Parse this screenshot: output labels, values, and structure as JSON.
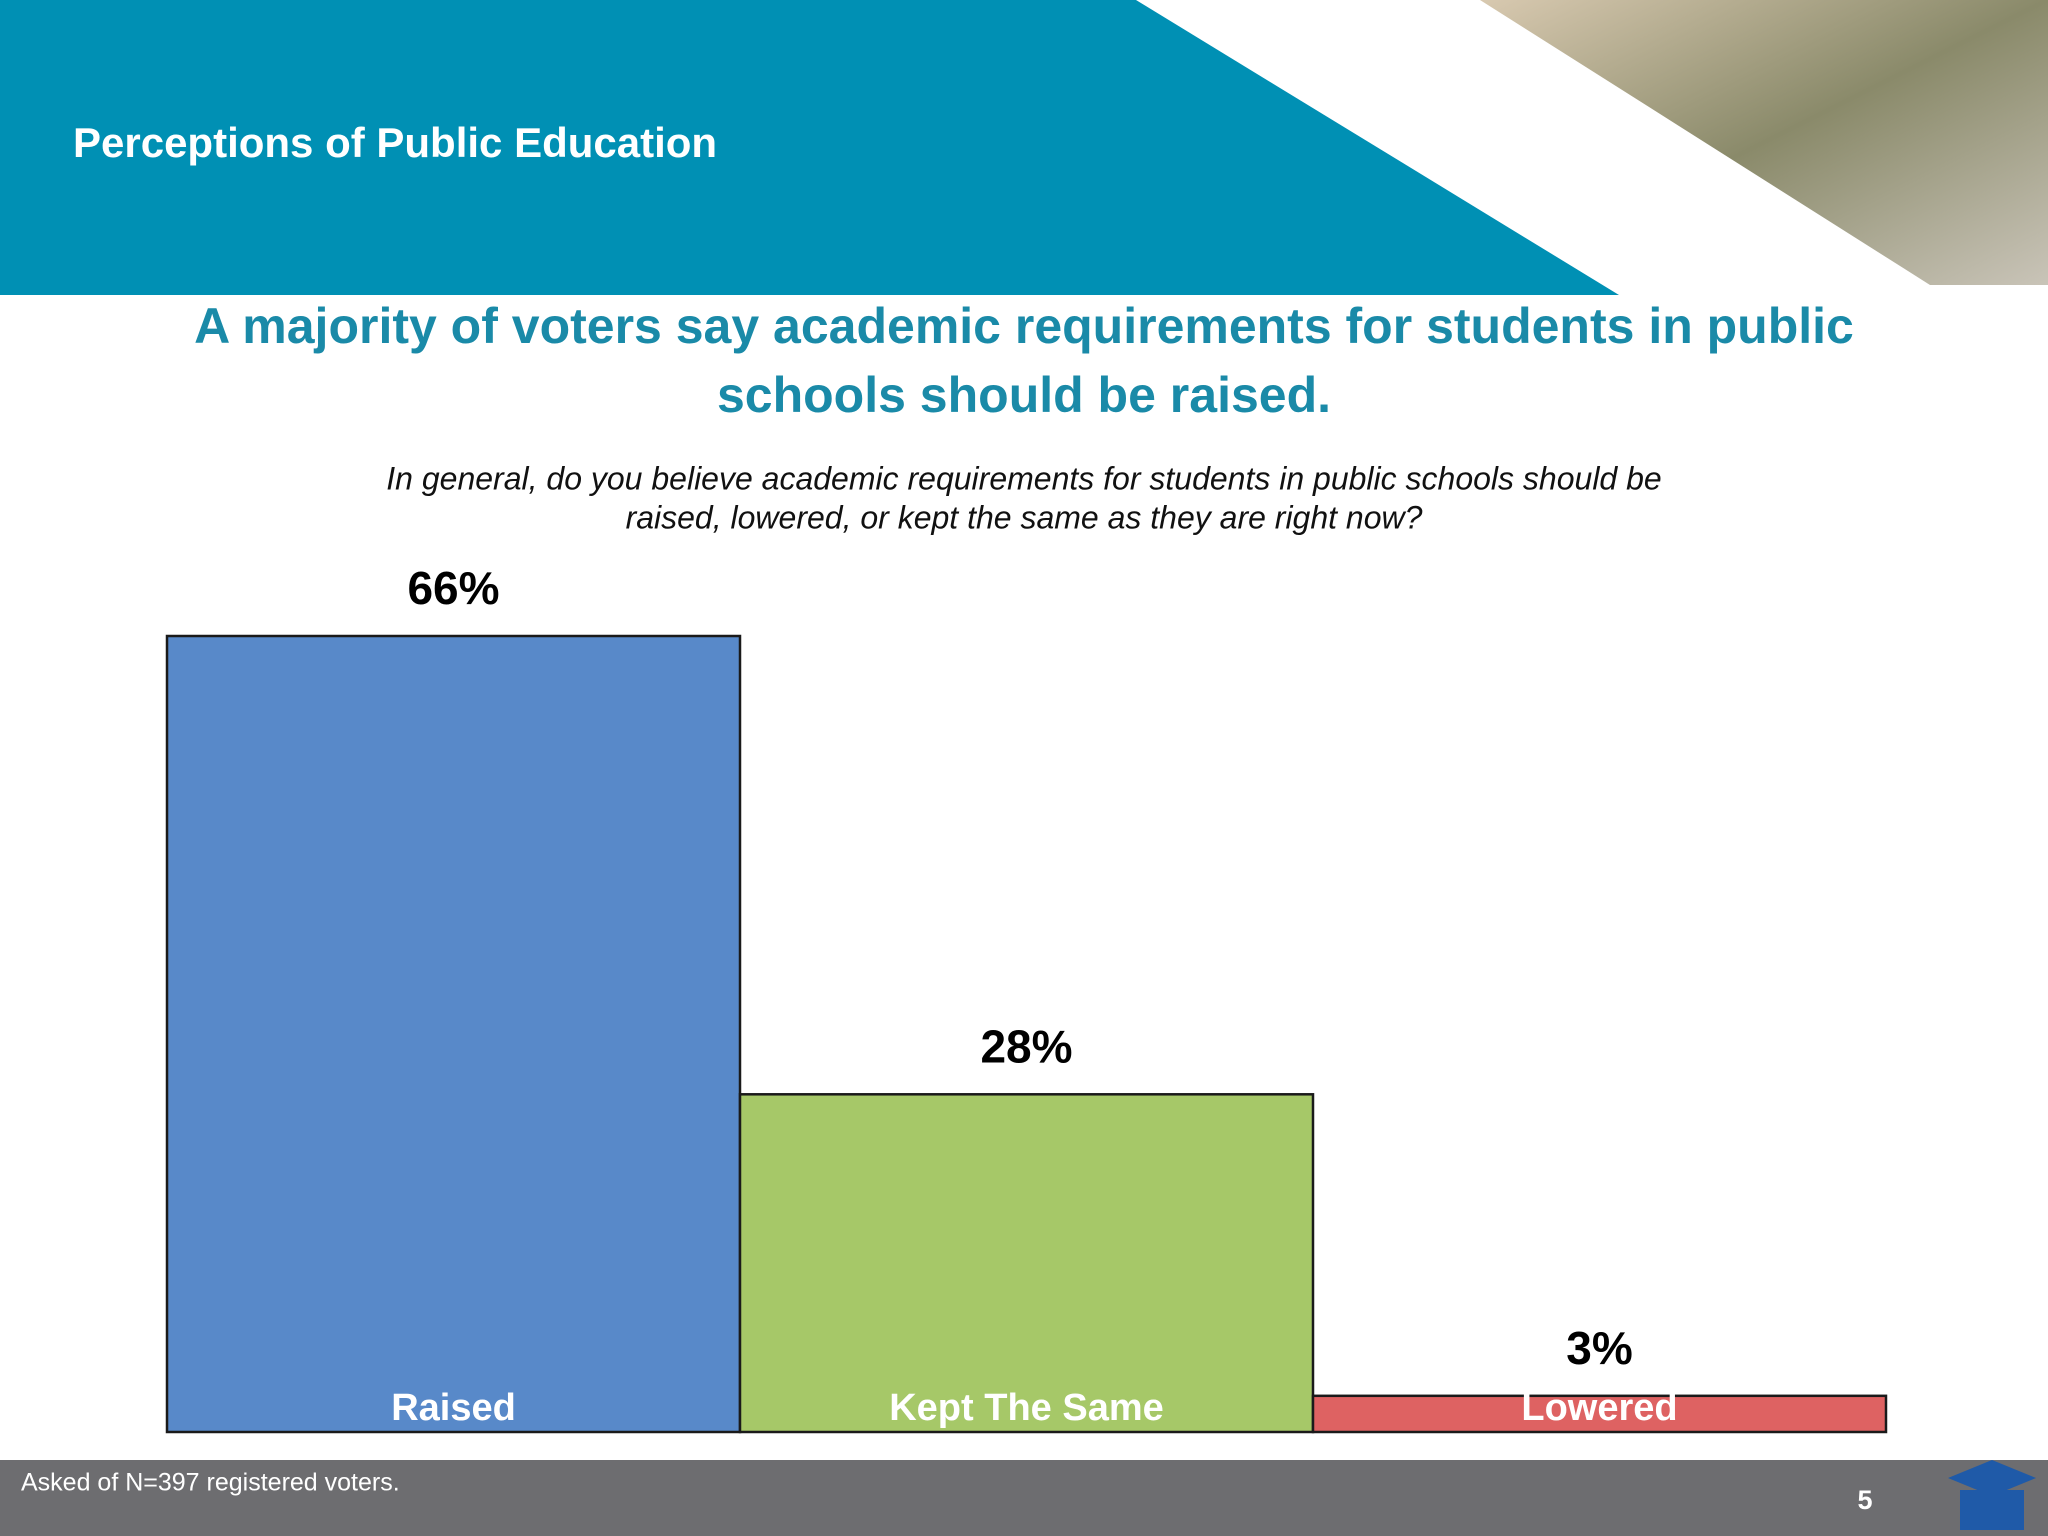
{
  "header": {
    "title": "Perceptions of Public Education"
  },
  "headline": [
    "A majority of voters say academic requirements for students in public",
    "schools should be raised."
  ],
  "chart_data": {
    "type": "bar",
    "question": [
      "In general, do you believe academic requirements for students in public schools should be",
      "raised, lowered, or kept the same as they are right now?"
    ],
    "categories": [
      "Raised",
      "Kept The Same",
      "Lowered"
    ],
    "values": [
      66,
      28,
      3
    ],
    "value_labels": [
      "66%",
      "28%",
      "3%"
    ],
    "colors": [
      "#5889c9",
      "#a6c868",
      "#de6262"
    ]
  },
  "footer": {
    "note": "Asked of N=397 registered voters.",
    "page_number": "5"
  }
}
